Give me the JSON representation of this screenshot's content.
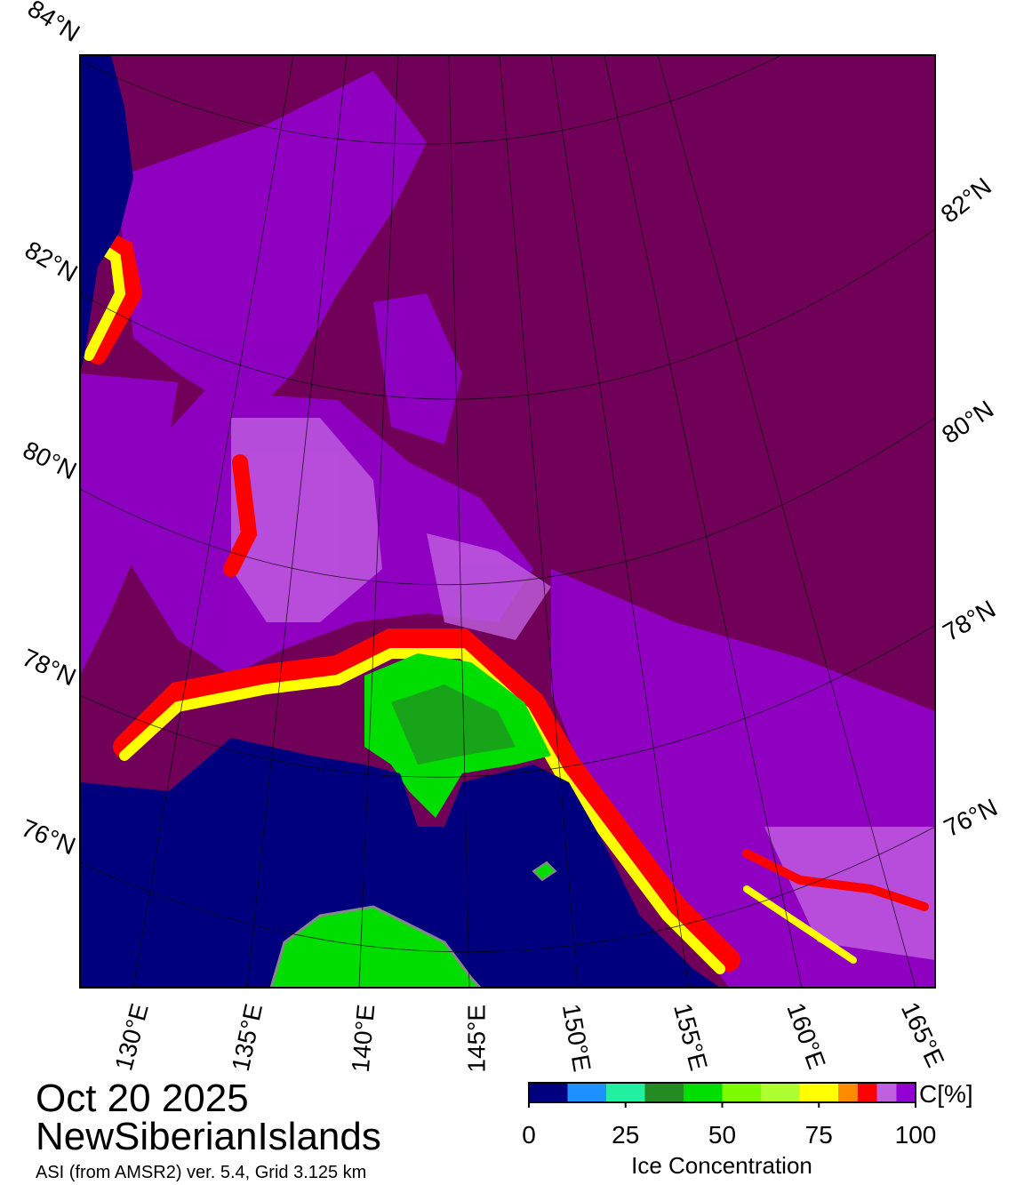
{
  "map": {
    "date": "Oct 20 2025",
    "region": "NewSiberianIslands",
    "source": "ASI (from AMSR2) ver. 5.4,  Grid 3.125 km",
    "lat_labels_left": [
      "84°N",
      "82°N",
      "80°N",
      "78°N",
      "76°N"
    ],
    "lat_labels_right": [
      "82°N",
      "80°N",
      "78°N",
      "76°N"
    ],
    "lon_labels": [
      "130°E",
      "135°E",
      "140°E",
      "145°E",
      "150°E",
      "155°E",
      "160°E",
      "165°E"
    ]
  },
  "colorbar": {
    "label": "Ice Concentration",
    "unit": "C[%]",
    "ticks": [
      0,
      25,
      50,
      75,
      100
    ],
    "bounds": [
      0,
      10,
      20,
      30,
      40,
      50,
      60,
      70,
      80,
      85,
      90,
      95,
      100
    ],
    "colors": [
      "#00007f",
      "#1e90ff",
      "#20f0a0",
      "#228b22",
      "#00dd00",
      "#7cfc00",
      "#adff2f",
      "#ffff00",
      "#ff8c00",
      "#ff0000",
      "#c060e0",
      "#9400d3"
    ]
  }
}
